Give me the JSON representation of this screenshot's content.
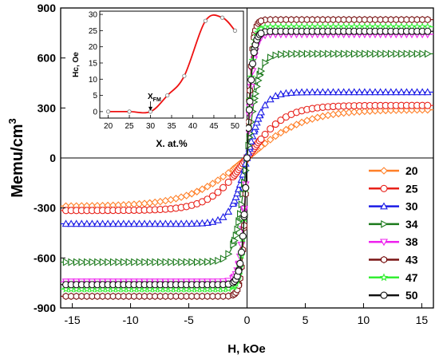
{
  "chart_data": [
    {
      "type": "line",
      "xlabel": "H, kOe",
      "ylabel": "Memu/cm",
      "ylabel_superscript": "3",
      "xlim": [
        -16,
        16
      ],
      "ylim": [
        -900,
        900
      ],
      "xticks": [
        -15,
        -10,
        -5,
        0,
        5,
        10,
        15
      ],
      "yticks": [
        -900,
        -600,
        -300,
        0,
        300,
        600,
        900
      ],
      "legend_position": "bottom-right",
      "series": [
        {
          "name": "20",
          "color": "#ff7f27",
          "marker": "diamond",
          "Ms": 290,
          "H0": 5.0
        },
        {
          "name": "25",
          "color": "#e8211a",
          "marker": "circle",
          "Ms": 315,
          "H0": 3.2
        },
        {
          "name": "30",
          "color": "#1c1ce6",
          "marker": "triangle-up",
          "Ms": 395,
          "H0": 1.4
        },
        {
          "name": "34",
          "color": "#1c7a1c",
          "marker": "triangle-right",
          "Ms": 625,
          "H0": 1.0
        },
        {
          "name": "38",
          "color": "#ee22ee",
          "marker": "triangle-down",
          "Ms": 742,
          "H0": 0.55
        },
        {
          "name": "43",
          "color": "#7a1414",
          "marker": "hexagon",
          "Ms": 830,
          "H0": 0.45
        },
        {
          "name": "47",
          "color": "#33ee33",
          "marker": "star",
          "Ms": 787,
          "H0": 0.5
        },
        {
          "name": "50",
          "color": "#111111",
          "marker": "circle",
          "Ms": 760,
          "H0": 0.5
        }
      ]
    },
    {
      "type": "line",
      "xlabel": "X. at.%",
      "ylabel": "Hc, Oe",
      "xlim": [
        18,
        52
      ],
      "ylim": [
        -2,
        31
      ],
      "xticks": [
        20,
        25,
        30,
        35,
        40,
        45,
        50
      ],
      "yticks": [
        0,
        5,
        10,
        15,
        20,
        25,
        30
      ],
      "annotation": "X",
      "annotation_sub": "FM",
      "annotation_x": 30,
      "points": [
        {
          "x": 20,
          "y": 0
        },
        {
          "x": 25,
          "y": 0
        },
        {
          "x": 30,
          "y": 0
        },
        {
          "x": 34,
          "y": 5
        },
        {
          "x": 38,
          "y": 11
        },
        {
          "x": 43,
          "y": 28
        },
        {
          "x": 47,
          "y": 29
        },
        {
          "x": 50,
          "y": 25
        }
      ],
      "fit_color": "#ee1111"
    }
  ]
}
